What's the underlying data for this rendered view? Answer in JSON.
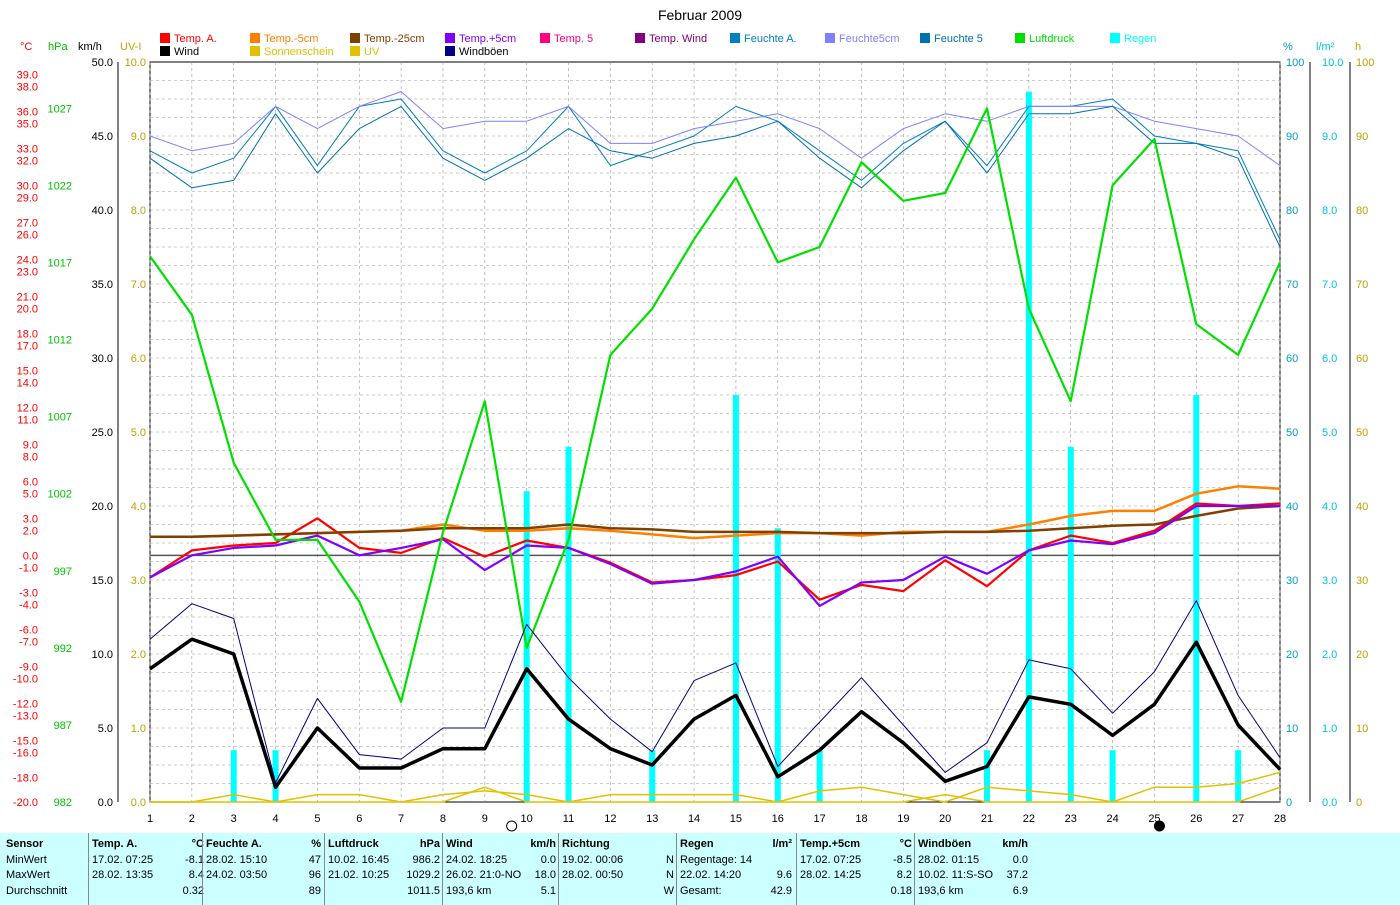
{
  "title": "Februar 2009",
  "axis_units": {
    "temp": "°C",
    "pressure": "hPa",
    "wind": "km/h",
    "uv": "UV-I",
    "humidity": "%",
    "rain": "l/m²",
    "sun": "h"
  },
  "colors": {
    "temp_a": "#ff0000",
    "temp_m5": "#ff8000",
    "temp_m25": "#804000",
    "temp_p5": "#8000ff",
    "temp_5": "#ff0080",
    "temp_wind": "#800080",
    "feuchte_a": "#0080c0",
    "feuchte5cm": "#8080ff",
    "feuchte5": "#0070b0",
    "luftdruck": "#00e000",
    "regen": "#00ffff",
    "wind": "#000000",
    "sonnenschein": "#e0c000",
    "uv": "#e0c000",
    "windboeen": "#000080"
  },
  "legend": [
    {
      "label": "Temp. A.",
      "color": "#ff0000"
    },
    {
      "label": "Temp.-5cm",
      "color": "#ff8000"
    },
    {
      "label": "Temp.-25cm",
      "color": "#804000"
    },
    {
      "label": "Temp.+5cm",
      "color": "#8000ff"
    },
    {
      "label": "Temp. 5",
      "color": "#ff0080"
    },
    {
      "label": "Temp. Wind",
      "color": "#800080"
    },
    {
      "label": "Feuchte A.",
      "color": "#0080c0"
    },
    {
      "label": "Feuchte5cm",
      "color": "#8080ff"
    },
    {
      "label": "Feuchte 5",
      "color": "#0070b0"
    },
    {
      "label": "Luftdruck",
      "color": "#00e000"
    },
    {
      "label": "Regen",
      "color": "#00ffff"
    },
    {
      "label": "Wind",
      "color": "#000000"
    },
    {
      "label": "Sonnenschein",
      "color": "#e0c000"
    },
    {
      "label": "UV",
      "color": "#e0c000"
    },
    {
      "label": "Windböen",
      "color": "#000080"
    }
  ],
  "chart_data": {
    "type": "line",
    "title": "Februar 2009",
    "x": [
      1,
      2,
      3,
      4,
      5,
      6,
      7,
      8,
      9,
      10,
      11,
      12,
      13,
      14,
      15,
      16,
      17,
      18,
      19,
      20,
      21,
      22,
      23,
      24,
      25,
      26,
      27,
      28
    ],
    "axes": {
      "temp_ticks": [
        "39.0",
        "38.0",
        "36.0",
        "35.0",
        "33.0",
        "32.0",
        "30.0",
        "29.0",
        "27.0",
        "26.0",
        "24.0",
        "23.0",
        "21.0",
        "20.0",
        "18.0",
        "17.0",
        "15.0",
        "14.0",
        "12.0",
        "11.0",
        "9.0",
        "8.0",
        "6.0",
        "5.0",
        "3.0",
        "2.0",
        "0.0",
        "-1.0",
        "-3.0",
        "-4.0",
        "-6.0",
        "-7.0",
        "-9.0",
        "-10.0",
        "-12.0",
        "-13.0",
        "-15.0",
        "-16.0",
        "-18.0",
        "-20.0"
      ],
      "pressure_ticks": [
        "1027",
        "1022",
        "1017",
        "1012",
        "1007",
        "1002",
        "997",
        "992",
        "987",
        "982"
      ],
      "wind_ticks": [
        "50.0",
        "45.0",
        "40.0",
        "35.0",
        "30.0",
        "25.0",
        "20.0",
        "15.0",
        "10.0",
        "5.0",
        "0.0"
      ],
      "uv_ticks": [
        "10.0",
        "9.0",
        "8.0",
        "7.0",
        "6.0",
        "5.0",
        "4.0",
        "3.0",
        "2.0",
        "1.0",
        "0.0"
      ],
      "humidity_ticks": [
        "100",
        "90",
        "80",
        "70",
        "60",
        "50",
        "40",
        "30",
        "20",
        "10",
        "0"
      ],
      "rain_ticks": [
        "10.0",
        "9.0",
        "8.0",
        "7.0",
        "6.0",
        "5.0",
        "4.0",
        "3.0",
        "2.0",
        "1.0",
        "0.0"
      ],
      "sun_ticks": [
        "100",
        "90",
        "80",
        "70",
        "60",
        "50",
        "40",
        "30",
        "20",
        "10",
        "0"
      ],
      "temp_range": [
        -20,
        40
      ],
      "pressure_range": [
        982,
        1030
      ],
      "wind_range": [
        0,
        50
      ],
      "humidity_range": [
        0,
        100
      ],
      "rain_range": [
        0,
        10
      ],
      "sun_range": [
        0,
        100
      ]
    },
    "series": [
      {
        "name": "Temp. A.",
        "axis": "temp",
        "color": "#ff0000",
        "values": [
          -1.8,
          0.4,
          0.8,
          1.0,
          3.0,
          0.6,
          0.2,
          1.4,
          -0.1,
          1.2,
          0.6,
          -0.6,
          -2.2,
          -2.0,
          -1.6,
          -0.5,
          -3.6,
          -2.4,
          -2.9,
          -0.4,
          -2.5,
          0.4,
          1.6,
          1.0,
          2.0,
          4.2,
          4.0,
          4.2
        ]
      },
      {
        "name": "Temp.-5cm",
        "axis": "temp",
        "color": "#ff8000",
        "values": [
          1.5,
          1.5,
          1.6,
          1.7,
          1.8,
          1.9,
          2.0,
          2.5,
          2.0,
          2.0,
          2.2,
          2.0,
          1.7,
          1.4,
          1.6,
          1.8,
          1.8,
          1.6,
          1.9,
          1.9,
          1.9,
          2.5,
          3.2,
          3.6,
          3.6,
          5.0,
          5.6,
          5.4
        ]
      },
      {
        "name": "Temp.-25cm",
        "axis": "temp",
        "color": "#804000",
        "values": [
          1.5,
          1.5,
          1.6,
          1.7,
          1.8,
          1.9,
          2.0,
          2.2,
          2.2,
          2.2,
          2.5,
          2.2,
          2.1,
          1.9,
          1.9,
          1.9,
          1.8,
          1.8,
          1.8,
          1.9,
          1.9,
          2.0,
          2.2,
          2.4,
          2.5,
          3.2,
          3.8,
          4.0
        ]
      },
      {
        "name": "Temp.+5cm",
        "axis": "temp",
        "color": "#8000ff",
        "values": [
          -1.8,
          0.0,
          0.6,
          0.8,
          1.6,
          0.0,
          0.6,
          1.3,
          -1.2,
          0.8,
          0.6,
          -0.7,
          -2.3,
          -2.0,
          -1.3,
          -0.1,
          -4.1,
          -2.2,
          -2.0,
          -0.1,
          -1.5,
          0.4,
          1.2,
          0.9,
          1.8,
          4.0,
          4.0,
          4.0
        ]
      },
      {
        "name": "Feuchte A.",
        "axis": "humidity",
        "color": "#0080c0",
        "values": [
          88,
          85,
          87,
          94,
          86,
          94,
          95,
          88,
          85,
          88,
          94,
          86,
          88,
          90,
          94,
          92,
          88,
          84,
          89,
          92,
          86,
          94,
          94,
          95,
          90,
          89,
          88,
          76
        ]
      },
      {
        "name": "Feuchte5cm",
        "axis": "humidity",
        "color": "#8080ff",
        "values": [
          90,
          88,
          89,
          94,
          91,
          94,
          96,
          91,
          92,
          92,
          94,
          89,
          89,
          91,
          92,
          93,
          91,
          87,
          91,
          93,
          92,
          94,
          94,
          94,
          92,
          91,
          90,
          86
        ]
      },
      {
        "name": "Feuchte 5",
        "axis": "humidity",
        "color": "#0070b0",
        "values": [
          87,
          83,
          84,
          93,
          85,
          91,
          94,
          87,
          84,
          87,
          91,
          88,
          87,
          89,
          90,
          92,
          87,
          83,
          88,
          92,
          85,
          93,
          93,
          94,
          89,
          89,
          87,
          75
        ]
      },
      {
        "name": "Luftdruck",
        "axis": "pressure",
        "color": "#00e000",
        "values": [
          1017.4,
          1013.6,
          1004.0,
          999.0,
          999.0,
          995.0,
          988.5,
          999.5,
          1008.0,
          992.0,
          999.0,
          1011.0,
          1014.0,
          1018.5,
          1022.5,
          1017.0,
          1018.0,
          1023.5,
          1021.0,
          1021.5,
          1027.0,
          1014.0,
          1008.0,
          1022.0,
          1025.0,
          1013.0,
          1011.0,
          1017.0
        ]
      },
      {
        "name": "Wind",
        "axis": "wind",
        "color": "#000000",
        "values": [
          9.0,
          11.0,
          10.0,
          1.0,
          5.0,
          2.3,
          2.3,
          3.6,
          3.6,
          9.0,
          5.6,
          3.6,
          2.5,
          5.6,
          7.2,
          1.7,
          3.5,
          6.1,
          4.0,
          1.4,
          2.4,
          7.1,
          6.6,
          4.5,
          6.6,
          10.8,
          5.2,
          2.2
        ]
      },
      {
        "name": "Windböen",
        "axis": "wind",
        "color": "#000080",
        "values": [
          11.0,
          13.4,
          12.4,
          1.3,
          7.0,
          3.2,
          2.9,
          5.0,
          5.0,
          12.0,
          8.4,
          5.6,
          3.4,
          8.2,
          9.4,
          2.4,
          5.4,
          8.4,
          5.2,
          2.0,
          4.0,
          9.6,
          9.0,
          6.0,
          8.8,
          13.6,
          7.2,
          3.0
        ]
      },
      {
        "name": "Sonnenschein",
        "axis": "sun",
        "color": "#e0c000",
        "values": [
          0,
          0,
          1,
          0,
          1,
          1,
          0,
          1,
          1.5,
          1,
          0,
          1,
          1,
          1,
          1,
          0,
          1.5,
          2,
          1,
          0,
          2,
          1.5,
          1,
          0,
          2,
          2,
          2.5,
          4
        ]
      },
      {
        "name": "UV",
        "axis": "uv",
        "color": "#e0c000",
        "values": [
          0,
          0,
          0,
          0,
          0,
          0,
          0,
          0,
          0.2,
          0,
          0,
          0,
          0,
          0,
          0,
          0,
          0,
          0,
          0,
          0.1,
          0,
          0,
          0,
          0,
          0,
          0,
          0,
          0.2
        ]
      }
    ],
    "bars": {
      "name": "Regen",
      "axis": "rain",
      "color": "#00ffff",
      "values": [
        0,
        0,
        0.7,
        0.7,
        0,
        0,
        0,
        0,
        0,
        4.2,
        4.8,
        0,
        0.7,
        0,
        5.5,
        3.7,
        0.7,
        0,
        0,
        0,
        0.7,
        9.6,
        4.8,
        0.7,
        0,
        5.5,
        0.7,
        0
      ]
    }
  },
  "stats": {
    "row_labels": [
      "Sensor",
      "MinWert",
      "MaxWert",
      "Durchschnitt"
    ],
    "groups": [
      {
        "header": "Temp. A.",
        "unit": "°C",
        "rows": [
          [
            "17.02. 07:25",
            "-8.1"
          ],
          [
            "28.02. 13:35",
            "8.4"
          ],
          [
            "",
            "0.32"
          ]
        ]
      },
      {
        "header": "Feuchte A.",
        "unit": "%",
        "rows": [
          [
            "28.02. 15:10",
            "47"
          ],
          [
            "24.02. 03:50",
            "96"
          ],
          [
            "",
            "89"
          ]
        ]
      },
      {
        "header": "Luftdruck",
        "unit": "hPa",
        "rows": [
          [
            "10.02. 16:45",
            "986.2"
          ],
          [
            "21.02. 10:25",
            "1029.2"
          ],
          [
            "",
            "1011.5"
          ]
        ]
      },
      {
        "header": "Wind",
        "unit": "km/h",
        "rows": [
          [
            "24.02. 18:25",
            "0.0"
          ],
          [
            "26.02. 21:0-NO",
            "18.0"
          ],
          [
            "193,6 km",
            "5.1"
          ]
        ]
      },
      {
        "header": "Richtung",
        "unit": "",
        "rows": [
          [
            "19.02. 00:06",
            "N"
          ],
          [
            "28.02. 00:50",
            "N"
          ],
          [
            "",
            "W"
          ]
        ]
      },
      {
        "header": "Regen",
        "unit": "l/m²",
        "rows": [
          [
            "Regentage: 14",
            ""
          ],
          [
            "22.02. 14:20",
            "9.6"
          ],
          [
            "Gesamt:",
            "42.9"
          ]
        ]
      },
      {
        "header": "Temp.+5cm",
        "unit": "°C",
        "rows": [
          [
            "17.02. 07:25",
            "-8.5"
          ],
          [
            "28.02. 14:25",
            "8.2"
          ],
          [
            "",
            "0.18"
          ]
        ]
      },
      {
        "header": "Windböen",
        "unit": "km/h",
        "rows": [
          [
            "28.02. 01:15",
            "0.0"
          ],
          [
            "10.02. 11:S-SO",
            "37.2"
          ],
          [
            "193,6 km",
            "6.9"
          ]
        ]
      }
    ]
  }
}
